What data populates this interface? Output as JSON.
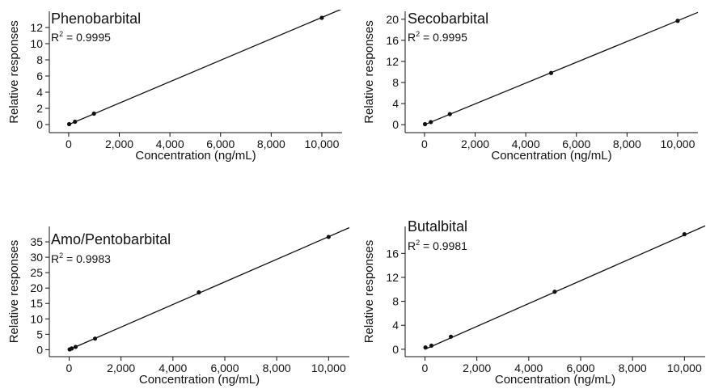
{
  "chart_data": [
    {
      "type": "scatter",
      "title": "Phenobarbital",
      "annotation": {
        "r2_base": "R",
        "r2_sup": "2",
        "r2_rest": " = 0.9995"
      },
      "xlabel": "Concentration (ng/mL)",
      "ylabel": "Relative responses",
      "xlim": [
        -700,
        10800
      ],
      "ylim": [
        -0.8,
        14
      ],
      "xticks": [
        0,
        2000,
        4000,
        6000,
        8000,
        10000
      ],
      "xtick_labels": [
        "0",
        "2,000",
        "4,000",
        "6,000",
        "8,000",
        "10,000"
      ],
      "yticks": [
        0,
        2,
        4,
        6,
        8,
        10,
        12
      ],
      "ytick_labels": [
        "0",
        "2",
        "4",
        "6",
        "8",
        "10",
        "12"
      ],
      "points": {
        "x": [
          20,
          250,
          1000,
          10000
        ],
        "y": [
          0.05,
          0.35,
          1.35,
          13.2
        ]
      },
      "fit": {
        "x": [
          0,
          10800
        ],
        "y": [
          0.0,
          14.3
        ]
      },
      "grid": false,
      "legend": "none"
    },
    {
      "type": "scatter",
      "title": "Secobarbital",
      "annotation": {
        "r2_base": "R",
        "r2_sup": "2",
        "r2_rest": " = 0.9995"
      },
      "xlabel": "Concentration (ng/mL)",
      "ylabel": "Relative responses",
      "xlim": [
        -700,
        10800
      ],
      "ylim": [
        -1.2,
        21.5
      ],
      "xticks": [
        0,
        2000,
        4000,
        6000,
        8000,
        10000
      ],
      "xtick_labels": [
        "0",
        "2,000",
        "4,000",
        "6,000",
        "8,000",
        "10,000"
      ],
      "yticks": [
        0,
        4,
        8,
        12,
        16,
        20
      ],
      "ytick_labels": [
        "0",
        "4",
        "8",
        "12",
        "16",
        "20"
      ],
      "points": {
        "x": [
          20,
          250,
          1000,
          5000,
          10000
        ],
        "y": [
          0.1,
          0.5,
          2.0,
          9.8,
          19.7
        ]
      },
      "fit": {
        "x": [
          0,
          10800
        ],
        "y": [
          0.0,
          21.3
        ]
      },
      "grid": false,
      "legend": "none"
    },
    {
      "type": "scatter",
      "title": "Amo/Pentobarbital",
      "annotation": {
        "r2_base": "R",
        "r2_sup": "2",
        "r2_rest": " = 0.9983"
      },
      "xlabel": "Concentration (ng/mL)",
      "ylabel": "Relative responses",
      "xlim": [
        -700,
        10800
      ],
      "ylim": [
        -2,
        40
      ],
      "xticks": [
        0,
        2000,
        4000,
        6000,
        8000,
        10000
      ],
      "xtick_labels": [
        "0",
        "2,000",
        "4,000",
        "6,000",
        "8,000",
        "10,000"
      ],
      "yticks": [
        0,
        5,
        10,
        15,
        20,
        25,
        30,
        35
      ],
      "ytick_labels": [
        "0",
        "5",
        "10",
        "15",
        "20",
        "25",
        "30",
        "35"
      ],
      "points": {
        "x": [
          20,
          100,
          250,
          1000,
          5000,
          10000
        ],
        "y": [
          0.1,
          0.4,
          0.9,
          3.6,
          18.6,
          36.6
        ]
      },
      "fit": {
        "x": [
          0,
          10800
        ],
        "y": [
          0.0,
          39.6
        ]
      },
      "grid": false,
      "legend": "none"
    },
    {
      "type": "scatter",
      "title": "Butalbital",
      "annotation": {
        "r2_base": "R",
        "r2_sup": "2",
        "r2_rest": " = 0.9981"
      },
      "xlabel": "Concentration (ng/mL)",
      "ylabel": "Relative responses",
      "xlim": [
        -700,
        10800
      ],
      "ylim": [
        -1.1,
        20.5
      ],
      "xticks": [
        0,
        2000,
        4000,
        6000,
        8000,
        10000
      ],
      "xtick_labels": [
        "0",
        "2,000",
        "4,000",
        "6,000",
        "8,000",
        "10,000"
      ],
      "yticks": [
        0,
        4,
        8,
        12,
        16
      ],
      "ytick_labels": [
        "0",
        "4",
        "8",
        "12",
        "16"
      ],
      "points": {
        "x": [
          20,
          250,
          1000,
          5000,
          10000
        ],
        "y": [
          0.3,
          0.6,
          2.1,
          9.6,
          19.2
        ]
      },
      "fit": {
        "x": [
          0,
          10800
        ],
        "y": [
          0.0,
          20.6
        ]
      },
      "grid": false,
      "legend": "none"
    }
  ]
}
